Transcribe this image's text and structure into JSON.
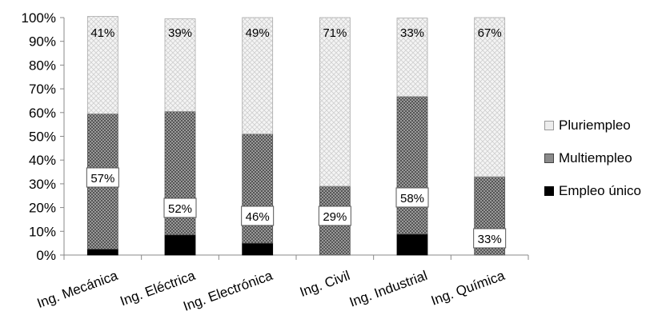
{
  "chart_data": {
    "type": "bar",
    "stacked": true,
    "percent_axis": true,
    "categories": [
      "Ing. Mecánica",
      "Ing. Eléctrica",
      "Ing. Electrónica",
      "Ing. Civil",
      "Ing. Industrial",
      "Ing. Química"
    ],
    "series": [
      {
        "name": "Empleo único",
        "values": [
          2.5,
          8.5,
          5.0,
          0.0,
          8.8,
          0.0
        ],
        "color": "#000000"
      },
      {
        "name": "Multiempleo",
        "values": [
          57,
          52,
          46,
          29,
          58,
          33
        ],
        "color": "#7a7a7a"
      },
      {
        "name": "Pluriempleo",
        "values": [
          41,
          39,
          49,
          71,
          33,
          67
        ],
        "color": "#e4e4e4"
      }
    ],
    "data_labels": {
      "Multiempleo": [
        "57%",
        "52%",
        "46%",
        "29%",
        "58%",
        "33%"
      ],
      "Pluriempleo": [
        "41%",
        "39%",
        "49%",
        "71%",
        "33%",
        "67%"
      ]
    },
    "y_ticks": [
      "0%",
      "10%",
      "20%",
      "30%",
      "40%",
      "50%",
      "60%",
      "70%",
      "80%",
      "90%",
      "100%"
    ],
    "ylim": [
      0,
      100
    ],
    "title": "",
    "xlabel": "",
    "ylabel": "",
    "grid": false,
    "legend_position": "right"
  }
}
